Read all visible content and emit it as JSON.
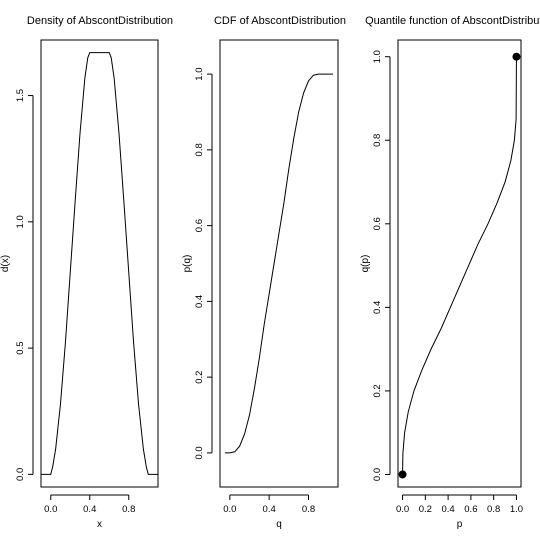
{
  "chart_data": [
    {
      "type": "line",
      "title": "Density of AbscontDistribution",
      "xlabel": "x",
      "ylabel": "d(x)",
      "xlim": [
        -0.1,
        1.1
      ],
      "ylim": [
        -0.05,
        1.72
      ],
      "x_ticks": [
        {
          "value": 0.0,
          "label": "0.0"
        },
        {
          "value": 0.4,
          "label": "0.4"
        },
        {
          "value": 0.8,
          "label": "0.8"
        }
      ],
      "y_ticks": [
        {
          "value": 0.0,
          "label": "0.0"
        },
        {
          "value": 0.5,
          "label": "0.5"
        },
        {
          "value": 1.0,
          "label": "1.0"
        },
        {
          "value": 1.5,
          "label": "1.5"
        }
      ],
      "grid": false,
      "series": [
        {
          "x": [
            -0.1,
            -0.05,
            0.0,
            0.02,
            0.05,
            0.1,
            0.15,
            0.2,
            0.25,
            0.3,
            0.35,
            0.38,
            0.4,
            0.5,
            0.6,
            0.62,
            0.65,
            0.7,
            0.75,
            0.8,
            0.85,
            0.9,
            0.95,
            0.98,
            1.0,
            1.05,
            1.1
          ],
          "y": [
            0.0,
            0.0,
            0.0,
            0.03,
            0.1,
            0.28,
            0.52,
            0.8,
            1.08,
            1.35,
            1.57,
            1.65,
            1.67,
            1.67,
            1.67,
            1.65,
            1.57,
            1.35,
            1.08,
            0.8,
            0.52,
            0.28,
            0.1,
            0.03,
            0.0,
            0.0,
            0.0
          ]
        }
      ],
      "points": []
    },
    {
      "type": "line",
      "title": "CDF of AbscontDistribution",
      "xlabel": "q",
      "ylabel": "p(q)",
      "xlim": [
        -0.1,
        1.1
      ],
      "ylim": [
        -0.09,
        1.09
      ],
      "x_ticks": [
        {
          "value": 0.0,
          "label": "0.0"
        },
        {
          "value": 0.4,
          "label": "0.4"
        },
        {
          "value": 0.8,
          "label": "0.8"
        }
      ],
      "y_ticks": [
        {
          "value": 0.0,
          "label": "0.0"
        },
        {
          "value": 0.2,
          "label": "0.2"
        },
        {
          "value": 0.4,
          "label": "0.4"
        },
        {
          "value": 0.6,
          "label": "0.6"
        },
        {
          "value": 0.8,
          "label": "0.8"
        },
        {
          "value": 1.0,
          "label": "1.0"
        }
      ],
      "grid": false,
      "series": [
        {
          "x": [
            -0.05,
            0.0,
            0.05,
            0.1,
            0.15,
            0.2,
            0.25,
            0.3,
            0.35,
            0.4,
            0.45,
            0.5,
            0.55,
            0.6,
            0.65,
            0.7,
            0.75,
            0.8,
            0.85,
            0.9,
            0.95,
            1.0,
            1.05
          ],
          "y": [
            0.0,
            0.0,
            0.003,
            0.018,
            0.05,
            0.1,
            0.17,
            0.25,
            0.34,
            0.42,
            0.5,
            0.58,
            0.66,
            0.75,
            0.83,
            0.9,
            0.95,
            0.982,
            0.997,
            1.0,
            1.0,
            1.0,
            1.0
          ]
        }
      ],
      "points": []
    },
    {
      "type": "line",
      "title": "Quantile function of AbscontDistributi",
      "xlabel": "p",
      "ylabel": "q(p)",
      "xlim": [
        -0.04,
        1.04
      ],
      "ylim": [
        -0.03,
        1.04
      ],
      "x_ticks": [
        {
          "value": 0.0,
          "label": "0.0"
        },
        {
          "value": 0.2,
          "label": "0.2"
        },
        {
          "value": 0.4,
          "label": "0.4"
        },
        {
          "value": 0.6,
          "label": "0.6"
        },
        {
          "value": 0.8,
          "label": "0.8"
        },
        {
          "value": 1.0,
          "label": "1.0"
        }
      ],
      "y_ticks": [
        {
          "value": 0.0,
          "label": "0.0"
        },
        {
          "value": 0.2,
          "label": "0.2"
        },
        {
          "value": 0.4,
          "label": "0.4"
        },
        {
          "value": 0.6,
          "label": "0.6"
        },
        {
          "value": 0.8,
          "label": "0.8"
        },
        {
          "value": 1.0,
          "label": "1.0"
        }
      ],
      "grid": false,
      "series": [
        {
          "x": [
            0.0,
            0.003,
            0.018,
            0.05,
            0.1,
            0.17,
            0.25,
            0.34,
            0.42,
            0.5,
            0.58,
            0.66,
            0.75,
            0.83,
            0.9,
            0.95,
            0.982,
            0.997,
            1.0
          ],
          "y": [
            0.0,
            0.05,
            0.1,
            0.15,
            0.2,
            0.25,
            0.3,
            0.35,
            0.4,
            0.45,
            0.5,
            0.55,
            0.6,
            0.65,
            0.7,
            0.75,
            0.8,
            0.85,
            1.0
          ]
        }
      ],
      "points": [
        {
          "x": 0.0,
          "y": 0.0
        },
        {
          "x": 1.0,
          "y": 1.0
        }
      ]
    }
  ]
}
